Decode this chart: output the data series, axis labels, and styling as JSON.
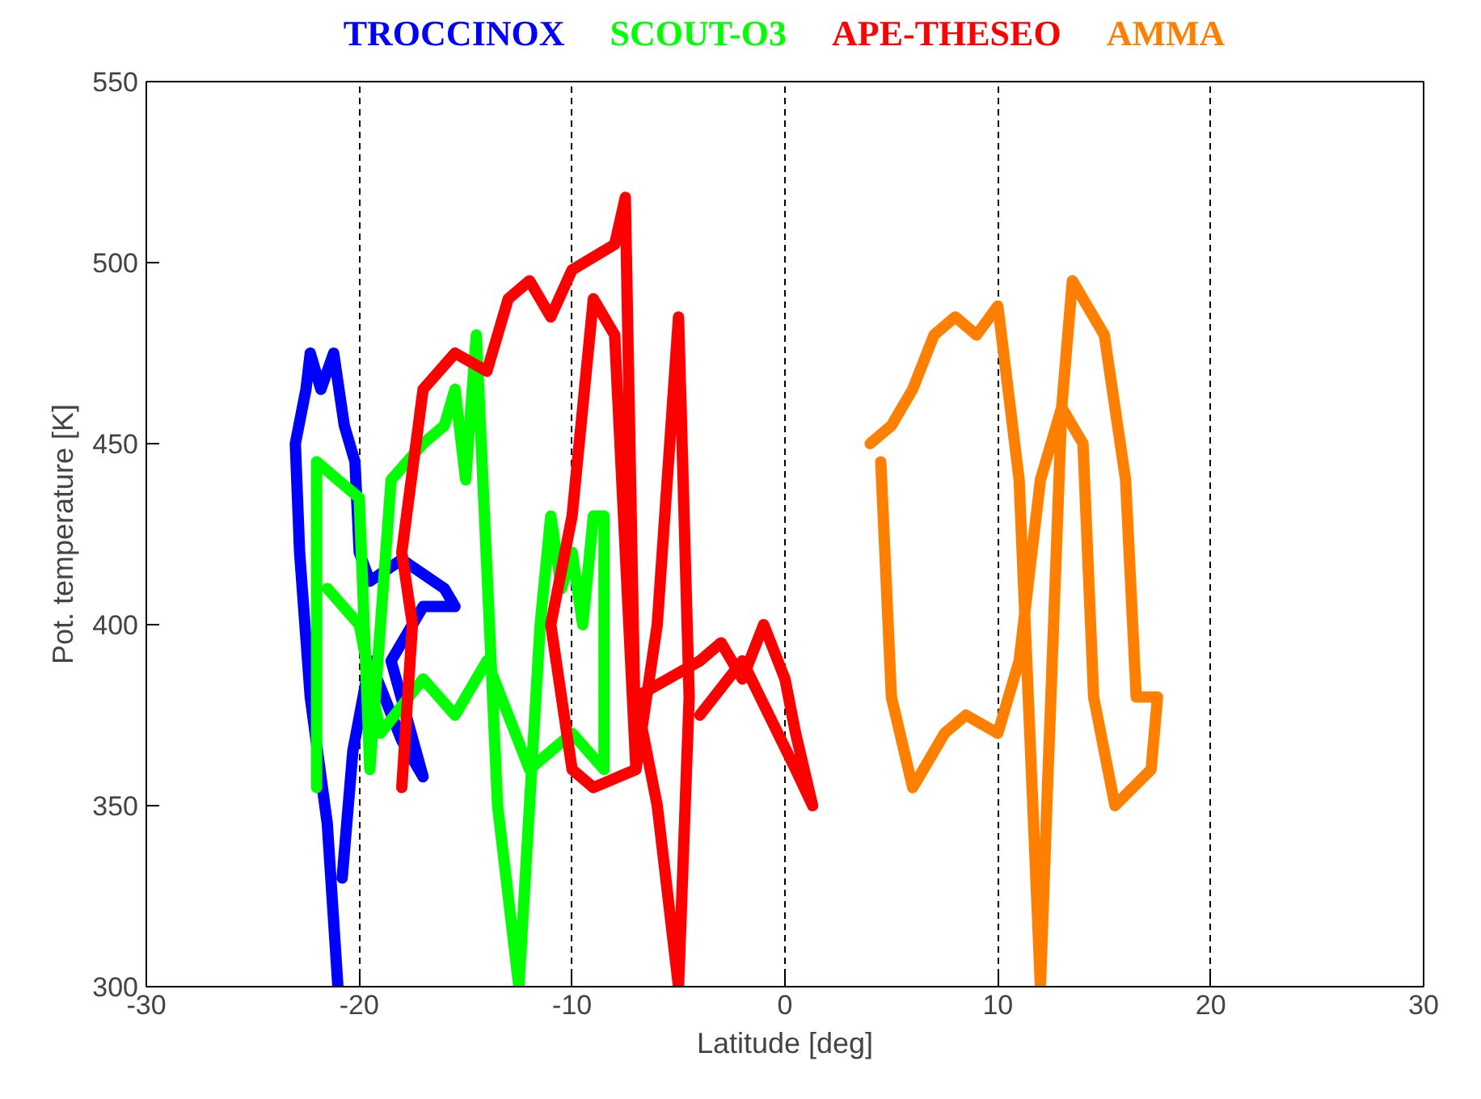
{
  "chart_data": {
    "type": "line",
    "xlabel": "Latitude [deg]",
    "ylabel": "Pot. temperature [K]",
    "xlim": [
      -30,
      30
    ],
    "ylim": [
      300,
      550
    ],
    "xticks": [
      -30,
      -20,
      -10,
      0,
      10,
      20,
      30
    ],
    "yticks": [
      300,
      350,
      400,
      450,
      500,
      550
    ],
    "grid": "x",
    "legend": "top",
    "line_style": "solid",
    "series": [
      {
        "name": "TROCCINOX",
        "color": "#0000ff",
        "x": [
          -21,
          -21.5,
          -22.3,
          -22.8,
          -23,
          -22.5,
          -22.3,
          -21.8,
          -21.2,
          -20.7,
          -20.2,
          -20,
          -19.5,
          -18,
          -16,
          -15.5,
          -17,
          -18.5,
          -17,
          -18,
          -19.5,
          -20.3,
          -20.8
        ],
        "values": [
          300,
          345,
          380,
          420,
          450,
          465,
          475,
          465,
          475,
          455,
          445,
          420,
          412,
          418,
          410,
          405,
          405,
          390,
          358,
          368,
          390,
          365,
          330
        ]
      },
      {
        "name": "SCOUT-O3",
        "color": "#00ff00",
        "x": [
          -22,
          -22,
          -21,
          -20,
          -19.5,
          -18.5,
          -17,
          -16,
          -15.5,
          -15,
          -14.5,
          -13.5,
          -12.5,
          -12,
          -11.5,
          -11,
          -10.5,
          -10,
          -9.5,
          -9,
          -8.5,
          -8.5,
          -10,
          -12,
          -14,
          -15.5,
          -17,
          -19,
          -20,
          -21.5
        ],
        "values": [
          355,
          445,
          440,
          435,
          360,
          440,
          450,
          455,
          465,
          440,
          480,
          350,
          300,
          350,
          400,
          430,
          410,
          420,
          400,
          430,
          430,
          360,
          370,
          360,
          390,
          375,
          385,
          370,
          400,
          410
        ]
      },
      {
        "name": "APE-THESEO",
        "color": "#ff0000",
        "x": [
          -18,
          -17.5,
          -18,
          -17,
          -15.5,
          -14,
          -13,
          -12,
          -11,
          -10,
          -8,
          -7.5,
          -7,
          -8,
          -9,
          -10,
          -11,
          -10,
          -9,
          -7,
          -6,
          -5,
          -4.5,
          -5,
          -6,
          -7,
          -4,
          -3,
          -2,
          -1,
          0,
          0.5,
          1.3,
          0.5,
          -2,
          -4
        ],
        "values": [
          355,
          400,
          420,
          465,
          475,
          470,
          490,
          495,
          485,
          498,
          505,
          518,
          360,
          480,
          490,
          430,
          400,
          360,
          355,
          360,
          400,
          485,
          380,
          300,
          350,
          380,
          390,
          395,
          385,
          400,
          385,
          370,
          350,
          360,
          390,
          375
        ]
      },
      {
        "name": "AMMA",
        "color": "#ff8000",
        "x": [
          4,
          5,
          6,
          7,
          8,
          9,
          10,
          11,
          12,
          12.3,
          13,
          13.5,
          15,
          16,
          16.5,
          17.5,
          17.2,
          15.5,
          14.5,
          14,
          13,
          12,
          11,
          10,
          8.5,
          7.5,
          6,
          5,
          4.5
        ],
        "values": [
          450,
          455,
          465,
          480,
          485,
          480,
          488,
          440,
          300,
          350,
          460,
          495,
          480,
          440,
          380,
          380,
          360,
          350,
          380,
          450,
          460,
          440,
          390,
          370,
          375,
          370,
          355,
          380,
          445
        ]
      }
    ]
  }
}
